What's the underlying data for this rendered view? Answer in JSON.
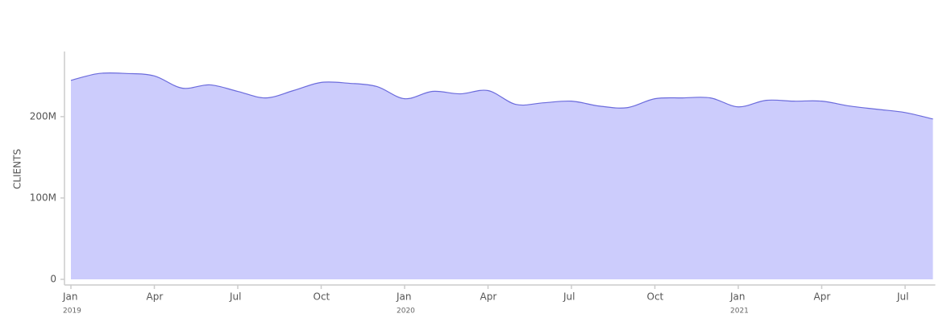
{
  "chart_data": {
    "type": "area",
    "y_label": "CLIENTS",
    "color": "#ccccfc",
    "line_color": "#6b6bdc",
    "x": [
      "2019-01",
      "2019-02",
      "2019-03",
      "2019-04",
      "2019-05",
      "2019-06",
      "2019-07",
      "2019-08",
      "2019-09",
      "2019-10",
      "2019-11",
      "2019-12",
      "2020-01",
      "2020-02",
      "2020-03",
      "2020-04",
      "2020-05",
      "2020-06",
      "2020-07",
      "2020-08",
      "2020-09",
      "2020-10",
      "2020-11",
      "2020-12",
      "2021-01",
      "2021-02",
      "2021-03",
      "2021-04",
      "2021-05",
      "2021-06",
      "2021-07",
      "2021-08"
    ],
    "values": [
      244600000,
      253000000,
      253000000,
      250000000,
      235000000,
      239000000,
      231000000,
      223000000,
      232000000,
      242000000,
      241000000,
      237000000,
      222000000,
      231000000,
      228000000,
      232000000,
      215000000,
      217000000,
      219000000,
      213000000,
      211000000,
      222000000,
      223000000,
      223000000,
      212000000,
      220000000,
      219000000,
      219000000,
      213000000,
      209000000,
      205000000,
      197000000
    ],
    "xlim": [
      "2019-01",
      "2021-08"
    ],
    "ylim": [
      0,
      280000000
    ],
    "yticks": [
      0,
      {
        "value": 100000000,
        "label": "100M"
      },
      {
        "value": 200000000,
        "label": "200M"
      }
    ],
    "xticks": [
      {
        "value": "2019-01",
        "label": "Jan"
      },
      {
        "value": "2019-04",
        "label": "Apr"
      },
      {
        "value": "2019-07",
        "label": "Jul"
      },
      {
        "value": "2019-10",
        "label": "Oct"
      },
      {
        "value": "2020-01",
        "label": "Jan"
      },
      {
        "value": "2020-04",
        "label": "Apr"
      },
      {
        "value": "2020-07",
        "label": "Jul"
      },
      {
        "value": "2020-10",
        "label": "Oct"
      },
      {
        "value": "2021-01",
        "label": "Jan"
      },
      {
        "value": "2021-04",
        "label": "Apr"
      },
      {
        "value": "2021-07",
        "label": "Jul"
      }
    ],
    "xtick_sublabels": [
      {
        "value": "2019-01",
        "label": "2019"
      },
      {
        "value": "2020-01",
        "label": "2020"
      },
      {
        "value": "2021-01",
        "label": "2021"
      }
    ]
  }
}
